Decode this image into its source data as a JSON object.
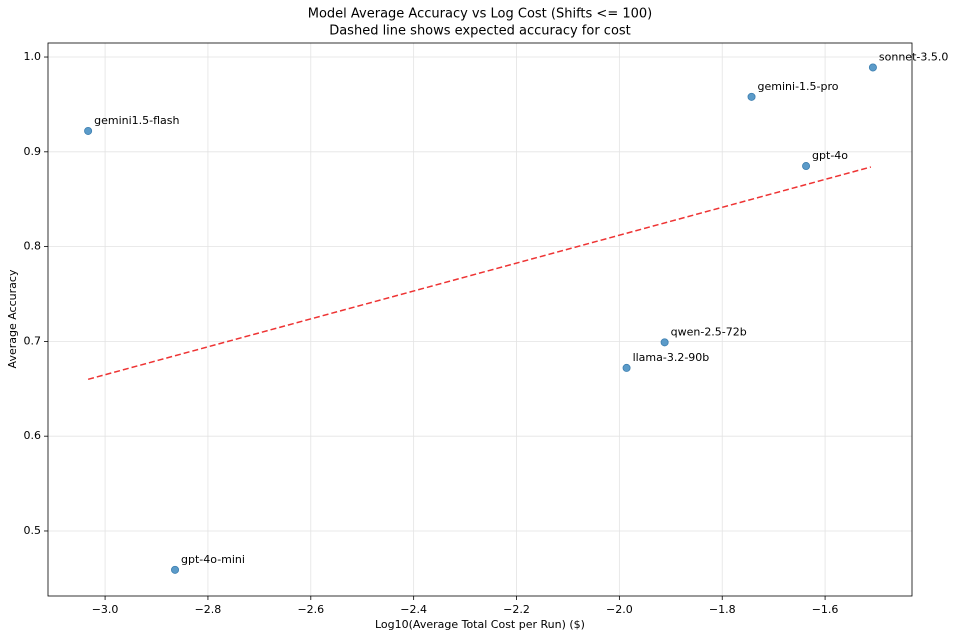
{
  "chart_data": {
    "type": "scatter",
    "title": "Model Average Accuracy vs Log Cost (Shifts <= 100)",
    "subtitle": "Dashed line shows expected accuracy for cost",
    "x_label": "Log10(Average Total Cost per Run) ($)",
    "y_label": "Average Accuracy",
    "labels": [
      "gemini1.5-flash",
      "gpt-4o-mini",
      "llama-3.2-90b",
      "qwen-2.5-72b",
      "gemini-1.5-pro",
      "gpt-4o",
      "sonnet-3.5.0"
    ],
    "x": [
      -3.033,
      -2.864,
      -1.986,
      -1.912,
      -1.743,
      -1.637,
      -1.507
    ],
    "values": [
      0.922,
      0.459,
      0.672,
      0.699,
      0.958,
      0.885,
      0.989
    ],
    "color": "#5b9bc9",
    "trend_line": {
      "x": [
        -3.033,
        -1.511
      ],
      "y": [
        0.66,
        0.884
      ],
      "color": "#ee3333",
      "style": "dashed"
    },
    "xlim": [
      -3.111,
      -1.431
    ],
    "ylim": [
      0.4314,
      1.0148
    ],
    "xticks": [
      {
        "value": -3.0,
        "label": "−3.0"
      },
      {
        "value": -2.8,
        "label": "−2.8"
      },
      {
        "value": -2.6,
        "label": "−2.6"
      },
      {
        "value": -2.4,
        "label": "−2.4"
      },
      {
        "value": -2.2,
        "label": "−2.2"
      },
      {
        "value": -2.0,
        "label": "−2.0"
      },
      {
        "value": -1.8,
        "label": "−1.8"
      },
      {
        "value": -1.6,
        "label": "−1.6"
      }
    ],
    "yticks": [
      0.5,
      0.6,
      0.7,
      0.8,
      0.9,
      {
        "value": 1.0,
        "label": "1.0"
      }
    ],
    "grid": true
  }
}
